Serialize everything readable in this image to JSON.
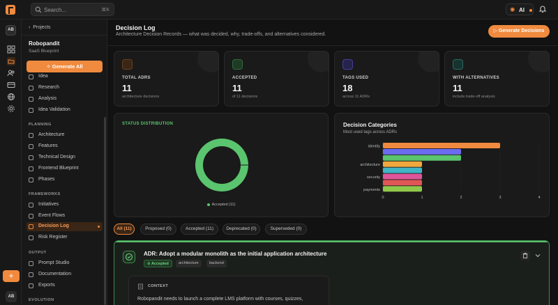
{
  "topbar": {
    "search_placeholder": "Search...",
    "search_shortcut": "⌘K",
    "ai_label": "AI",
    "icons": [
      "app-logo",
      "search-icon",
      "sparkle-icon",
      "bell-icon"
    ]
  },
  "rail": {
    "workspace_initials": "AB",
    "user_initials": "AB",
    "add_label": "+",
    "icons": [
      "grid-icon",
      "folder-icon",
      "users-icon",
      "card-icon",
      "globe-icon",
      "gear-icon"
    ]
  },
  "sidebar": {
    "back_label": "Projects",
    "project_name": "Robopandit",
    "project_sub": "SaaS Blueprint",
    "generate_all_label": "Generate All",
    "discovery_items": [
      {
        "label": "Idea"
      },
      {
        "label": "Research"
      },
      {
        "label": "Analysis"
      },
      {
        "label": "Idea Validation"
      }
    ],
    "planning_heading": "PLANNING",
    "planning_items": [
      {
        "label": "Architecture"
      },
      {
        "label": "Features"
      },
      {
        "label": "Technical Design"
      },
      {
        "label": "Frontend Blueprint"
      },
      {
        "label": "Phases"
      }
    ],
    "frameworks_heading": "FRAMEWORKS",
    "frameworks_items": [
      {
        "label": "Initiatives"
      },
      {
        "label": "Event Flows"
      },
      {
        "label": "Decision Log"
      },
      {
        "label": "Risk Register"
      }
    ],
    "output_heading": "OUTPUT",
    "output_items": [
      {
        "label": "Prompt Studio"
      },
      {
        "label": "Documentation"
      },
      {
        "label": "Exports"
      }
    ],
    "evolution_heading": "EVOLUTION"
  },
  "page": {
    "title": "Decision Log",
    "subtitle": "Architecture Decision Records — what was decided, why, trade-offs, and alternatives considered.",
    "generate_button": "Generate Decisions"
  },
  "stats": [
    {
      "label": "TOTAL ADRS",
      "value": "11",
      "caption": "architecture decisions",
      "color": "#f08a3e",
      "icon": "book-icon"
    },
    {
      "label": "ACCEPTED",
      "value": "11",
      "caption": "of 11 decisions",
      "color": "#5ac46e",
      "icon": "check-circle-icon"
    },
    {
      "label": "TAGS USED",
      "value": "18",
      "caption": "across 11 ADRs",
      "color": "#7c6cf0",
      "icon": "tag-icon"
    },
    {
      "label": "WITH ALTERNATIVES",
      "value": "11",
      "caption": "include trade-off analysis",
      "color": "#3fb5a5",
      "icon": "branch-icon"
    }
  ],
  "status_panel": {
    "title": "STATUS DISTRIBUTION",
    "legend": "Accepted (11)"
  },
  "categories_panel": {
    "title": "Decision Categories",
    "subtitle": "Most used tags across ADRs"
  },
  "chart_data": [
    {
      "type": "pie",
      "title": "STATUS DISTRIBUTION",
      "categories": [
        "Accepted"
      ],
      "values": [
        11
      ],
      "colors": [
        "#5ac46e"
      ]
    },
    {
      "type": "bar",
      "orientation": "horizontal",
      "title": "Decision Categories",
      "subtitle": "Most used tags across ADRs",
      "categories": [
        "identity",
        "",
        "",
        "architecture",
        "",
        "security",
        "",
        "payments"
      ],
      "values": [
        3,
        2,
        2,
        1,
        1,
        1,
        1,
        1
      ],
      "colors": [
        "#f08a3e",
        "#6c6cf0",
        "#5ac46e",
        "#f0a83e",
        "#3fb5c5",
        "#e0569a",
        "#e05656",
        "#8fc84a"
      ],
      "xlim": [
        0,
        4
      ],
      "xticks": [
        "0",
        "1",
        "2",
        "3",
        "4"
      ],
      "grid": true
    }
  ],
  "filters": [
    {
      "label": "All (11)",
      "active": true
    },
    {
      "label": "Proposed (0)"
    },
    {
      "label": "Accepted (11)"
    },
    {
      "label": "Deprecated (0)"
    },
    {
      "label": "Superseded (0)"
    }
  ],
  "adr": {
    "title": "ADR: Adopt a modular monolith as the initial application architecture",
    "status": "Accepted",
    "tags": [
      "architecture",
      "backend"
    ],
    "context_heading": "CONTEXT",
    "context_text": "Robopandit needs to launch a complete LMS platform with courses, quizzes,"
  }
}
